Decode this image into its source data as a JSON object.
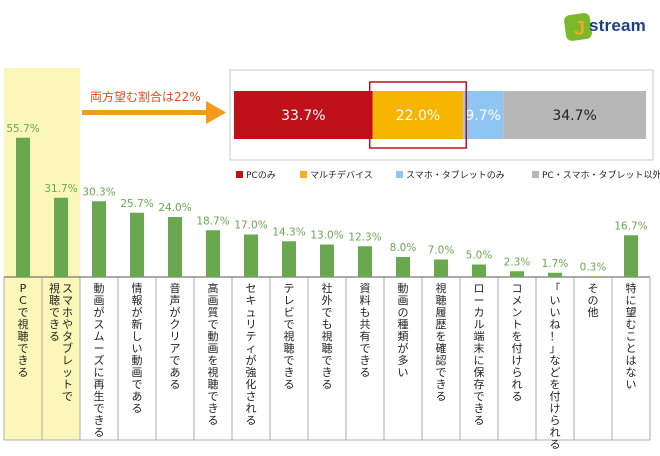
{
  "brand": {
    "name": "stream",
    "mark_letter": "J",
    "colors": {
      "text": "#1d3f8a",
      "mark": "#7ab929",
      "mark_accent": "#f5a623"
    }
  },
  "callout": {
    "text": "両方望む割合は22%",
    "color": "#e24f1a",
    "arrow_color": "#f59a1b"
  },
  "chart_data": [
    {
      "type": "bar",
      "orientation": "horizontal-stacked",
      "segments": [
        {
          "name": "PCのみ",
          "value": 33.7,
          "label": "33.7%",
          "color": "#c0101a",
          "label_color": "#ffffff"
        },
        {
          "name": "マルチデバイス",
          "value": 22.0,
          "label": "22.0%",
          "color": "#f7b500",
          "label_color": "#ffffff"
        },
        {
          "name": "スマホ・タブレットのみ",
          "value": 9.7,
          "label": "9.7%",
          "color": "#8ec5f2",
          "label_color": "#ffffff"
        },
        {
          "name": "PC・スマホ・タブレット以外",
          "value": 34.7,
          "label": "34.7%",
          "color": "#b7b7b7",
          "label_color": "#222222"
        }
      ],
      "highlight_segment": 1,
      "highlight_color": "#c0101a",
      "legend_position": "bottom"
    },
    {
      "type": "bar",
      "categories": [
        "PCで視聴できる",
        "スマホやタブレットで視聴できる",
        "動画がスムーズに再生できる",
        "情報が新しい動画である",
        "音声がクリアである",
        "高画質で動画を視聴できる",
        "セキュリティが強化される",
        "テレビで視聴できる",
        "社外でも視聴できる",
        "資料も共有できる",
        "動画の種類が多い",
        "視聴履歴を確認できる",
        "ローカル端末に保存できる",
        "コメントを付けられる",
        "「いいね！」などを付けられる",
        "その他",
        "特に望むことはない"
      ],
      "values": [
        55.7,
        31.7,
        30.3,
        25.7,
        24.0,
        18.7,
        17.0,
        14.3,
        13.0,
        12.3,
        8.0,
        7.0,
        5.0,
        2.3,
        1.7,
        0.3,
        16.7
      ],
      "value_labels": [
        "55.7%",
        "31.7%",
        "30.3%",
        "25.7%",
        "24.0%",
        "18.7%",
        "17.0%",
        "14.3%",
        "13.0%",
        "12.3%",
        "8.0%",
        "7.0%",
        "5.0%",
        "2.3%",
        "1.7%",
        "0.3%",
        "16.7%"
      ],
      "highlighted_categories": [
        0,
        1
      ],
      "highlight_fill": "#fbf7b8",
      "bar_color": "#6aa84f",
      "label_color": "#6aa84f",
      "ylim": [
        0,
        60
      ],
      "grid": false,
      "title": "",
      "xlabel": "",
      "ylabel": ""
    }
  ]
}
